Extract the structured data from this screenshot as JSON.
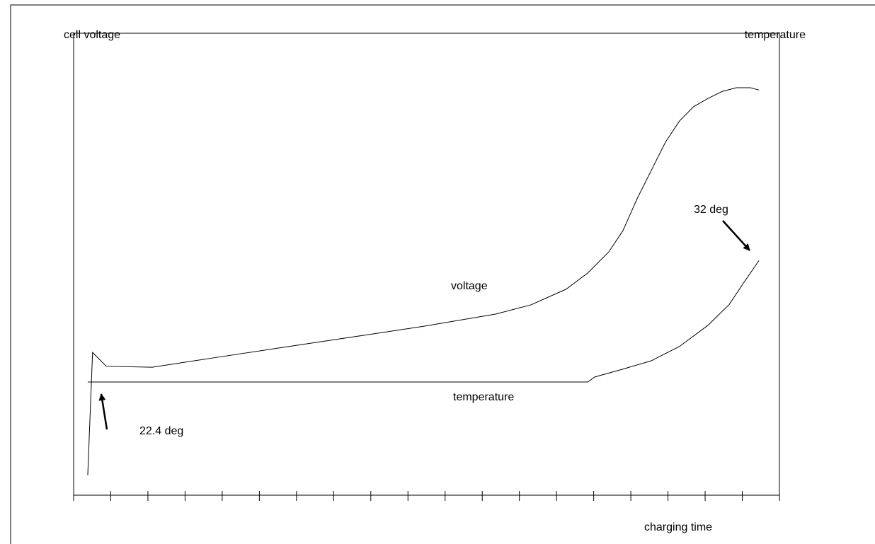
{
  "chart_data": {
    "type": "line",
    "y_label": "cell voltage",
    "y2_label": "temperature",
    "x_label": "charging time",
    "xlim": [
      0,
      19
    ],
    "xticks": [
      0,
      1,
      2,
      3,
      4,
      5,
      6,
      7,
      8,
      9,
      10,
      11,
      12,
      13,
      14,
      15,
      16,
      17,
      18,
      19
    ],
    "ylim": [
      0,
      100
    ],
    "y2lim": [
      0,
      100
    ],
    "series": [
      {
        "name": "voltage",
        "color": "#000000",
        "x": [
          0.38,
          0.51,
          0.88,
          2.12,
          3.74,
          5.64,
          7.55,
          9.45,
          11.36,
          12.31,
          13.26,
          13.84,
          14.41,
          14.79,
          15.17,
          15.55,
          15.93,
          16.31,
          16.69,
          17.08,
          17.46,
          17.84,
          18.22,
          18.45
        ],
        "values": [
          4.3,
          30.9,
          27.9,
          27.7,
          29.7,
          32.0,
          34.3,
          36.6,
          39.2,
          41.2,
          44.6,
          48.1,
          52.7,
          57.3,
          64.2,
          70.3,
          76.4,
          81.0,
          84.1,
          85.9,
          87.4,
          88.2,
          88.2,
          87.7
        ]
      },
      {
        "name": "temperature",
        "color": "#000000",
        "axis": "y2",
        "x": [
          0.38,
          13.84,
          14.03,
          14.79,
          15.55,
          16.31,
          17.08,
          17.65,
          18.03,
          18.45
        ],
        "values": [
          24.5,
          24.5,
          25.6,
          27.3,
          29.1,
          32.2,
          36.8,
          41.3,
          45.9,
          50.8
        ]
      }
    ],
    "annotations": [
      "22.4 deg",
      "32 deg"
    ]
  }
}
